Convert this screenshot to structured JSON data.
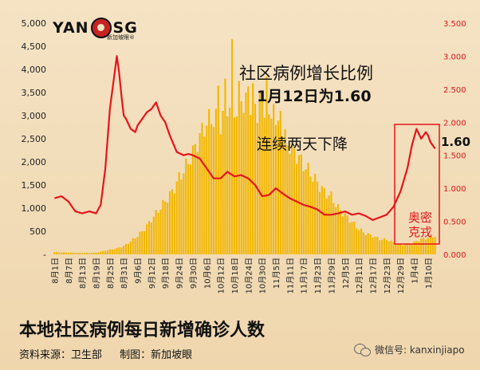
{
  "logo": {
    "text_left": "YAN",
    "text_right": "SG",
    "sub": "新加坡眼®"
  },
  "annotations": {
    "title": "社区病例增长比例",
    "subtitle": "1月12日为1.60",
    "trend": "连续两天下降",
    "value": "1.60",
    "omicron_line1": "奥密",
    "omicron_line2": "克戎"
  },
  "footer": {
    "main_title": "本地社区病例每日新增确诊人数",
    "source": "资料来源：卫生部",
    "producer": "制图：新加坡眼",
    "wechat": "微信号: kanxinjiapo"
  },
  "colors": {
    "bar": "#f2b705",
    "line": "#e8141b",
    "highlight_box": "#e8141b",
    "axis_right": "#e0161d"
  },
  "chart_data": {
    "type": "bar",
    "title": "本地社区病例每日新增确诊人数",
    "left_axis": {
      "min": 0,
      "max": 5000,
      "ticks": [
        "-",
        "500",
        "1,000",
        "1,500",
        "2,000",
        "2,500",
        "3,000",
        "3,500",
        "4,000",
        "4,500",
        "5,000"
      ]
    },
    "right_axis": {
      "min": 0,
      "max": 3.5,
      "ticks": [
        "0.000",
        "0.500",
        "1.000",
        "1.500",
        "2.000",
        "2.500",
        "3.000",
        "3.500"
      ]
    },
    "x_tick_labels": [
      "8月1日",
      "8月7日",
      "8月13日",
      "8月19日",
      "8月25日",
      "8月31日",
      "9月6日",
      "9月12日",
      "9月18日",
      "9月24日",
      "9月30日",
      "10月6日",
      "10月12日",
      "10月18日",
      "10月24日",
      "10月30日",
      "11月5日",
      "11月11日",
      "11月17日",
      "11月23日",
      "11月29日",
      "12月5日",
      "12月11日",
      "12月17日",
      "12月23日",
      "12月29日",
      "1月4日",
      "1月10日"
    ],
    "bar_series": {
      "anchor_days": [
        0,
        6,
        12,
        18,
        24,
        27,
        30,
        33,
        36,
        39,
        42,
        45,
        48,
        51,
        54,
        57,
        60,
        63,
        66,
        69,
        72,
        75,
        78,
        81,
        84,
        87,
        90,
        93,
        96,
        99,
        102,
        105,
        108,
        111,
        114,
        117,
        120,
        123,
        126,
        129,
        132,
        135,
        138,
        141,
        144,
        147,
        150,
        153,
        156,
        159,
        162,
        165
      ],
      "anchor_values": [
        50,
        40,
        30,
        35,
        100,
        130,
        180,
        280,
        400,
        550,
        750,
        950,
        1150,
        1350,
        1650,
        1900,
        2200,
        2550,
        2850,
        2950,
        2850,
        3250,
        3100,
        3300,
        3450,
        3000,
        3050,
        2850,
        2750,
        2550,
        2350,
        2150,
        1950,
        1750,
        1550,
        1350,
        1250,
        1000,
        850,
        700,
        550,
        450,
        400,
        330,
        320,
        260,
        200,
        220,
        260,
        330,
        360,
        400
      ],
      "spikes": [
        [
          71,
          3650
        ],
        [
          74,
          3800
        ],
        [
          77,
          4650
        ],
        [
          80,
          3750
        ],
        [
          83,
          3500
        ],
        [
          86,
          3700
        ],
        [
          89,
          3500
        ],
        [
          92,
          3850
        ],
        [
          95,
          3250
        ],
        [
          98,
          3100
        ]
      ]
    },
    "line_series": {
      "name": "社区病例增长比例",
      "x_days": [
        0,
        3,
        6,
        9,
        12,
        15,
        18,
        20,
        22,
        24,
        27,
        28,
        29,
        30,
        31,
        33,
        35,
        36,
        38,
        40,
        42,
        44,
        46,
        48,
        50,
        53,
        56,
        58,
        60,
        63,
        66,
        69,
        72,
        75,
        78,
        81,
        84,
        87,
        90,
        93,
        96,
        99,
        102,
        105,
        108,
        111,
        114,
        117,
        120,
        123,
        126,
        129,
        132,
        135,
        138,
        141,
        144,
        147,
        150,
        153,
        155,
        157,
        159,
        161,
        162,
        163,
        164,
        165
      ],
      "y_values": [
        0.85,
        0.88,
        0.8,
        0.65,
        0.62,
        0.65,
        0.62,
        0.75,
        1.3,
        2.2,
        3.0,
        2.75,
        2.4,
        2.1,
        2.05,
        1.9,
        1.85,
        1.95,
        2.05,
        2.15,
        2.2,
        2.3,
        2.1,
        2.0,
        1.8,
        1.55,
        1.5,
        1.52,
        1.5,
        1.45,
        1.3,
        1.15,
        1.15,
        1.25,
        1.18,
        1.2,
        1.15,
        1.05,
        0.88,
        0.9,
        1.0,
        0.92,
        0.85,
        0.8,
        0.75,
        0.72,
        0.68,
        0.6,
        0.6,
        0.62,
        0.65,
        0.6,
        0.62,
        0.58,
        0.52,
        0.56,
        0.6,
        0.72,
        0.95,
        1.3,
        1.65,
        1.9,
        1.75,
        1.85,
        1.8,
        1.7,
        1.65,
        1.6
      ]
    }
  }
}
